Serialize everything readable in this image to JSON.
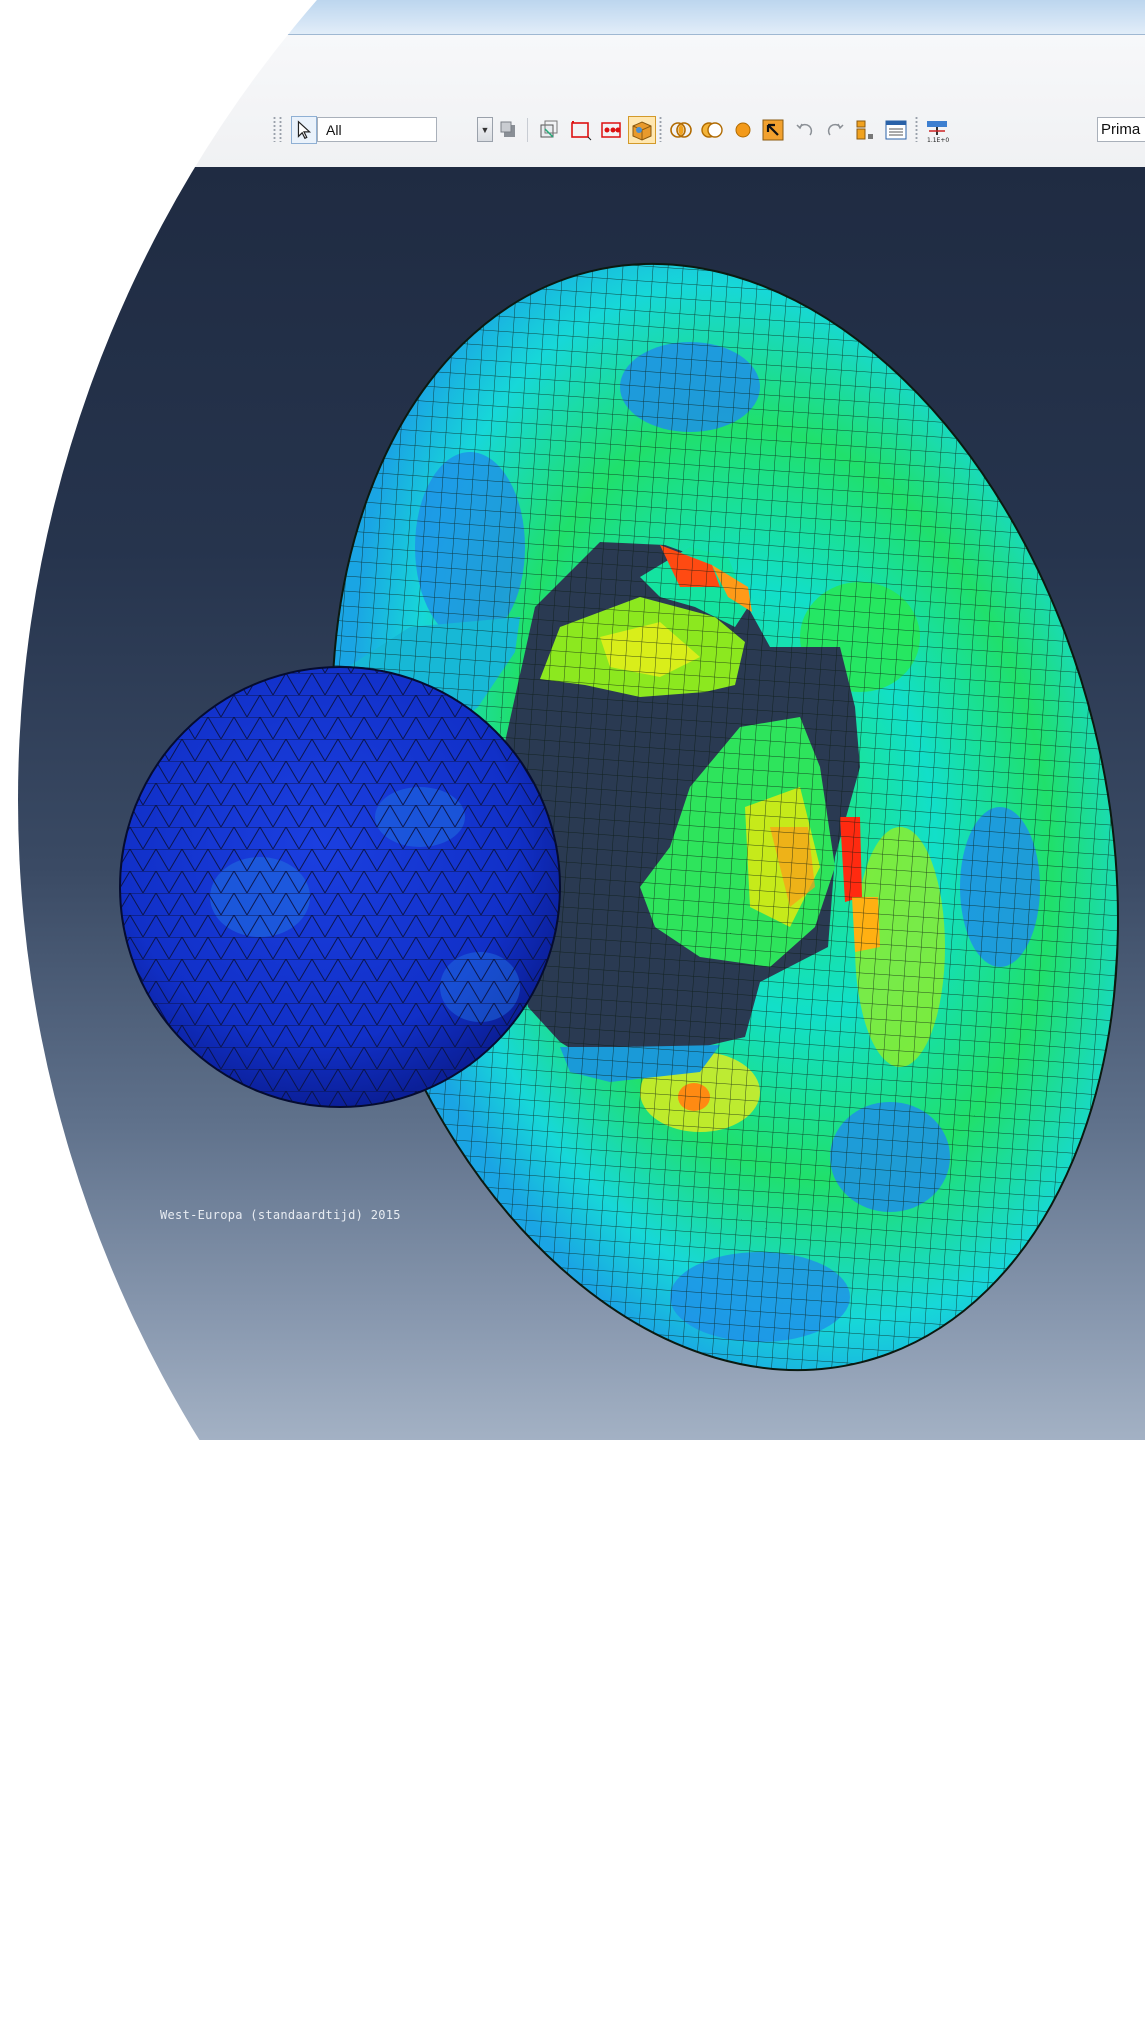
{
  "toolbar": {
    "selection_filter_value": "All",
    "primary_field_value": "Prima",
    "icons": [
      "select-arrow-icon",
      "hide-show-icon",
      "view-cut-icon",
      "box-select-icon",
      "node-select-icon",
      "element-render-icon",
      "boolean-intersect-icon",
      "boolean-union-icon",
      "sphere-icon",
      "pick-icon",
      "undo-icon",
      "redo-icon",
      "replace-icon",
      "table-icon",
      "field-output-icon"
    ]
  },
  "viewport": {
    "watermark_text": "West-Europa (standaardtijd) 2015",
    "background_top": "#1f2b42",
    "background_bottom": "#a3b1c4"
  },
  "colors": {
    "mesh_blue": "#0c2fd6",
    "mesh_light_blue": "#1f8fe8",
    "mesh_cyan": "#19e0d6",
    "mesh_green": "#27e95a",
    "mesh_yellow": "#e6ee1a",
    "mesh_orange": "#ff8a12",
    "mesh_red": "#ff2a10",
    "sphere_blue": "#1130c8"
  }
}
